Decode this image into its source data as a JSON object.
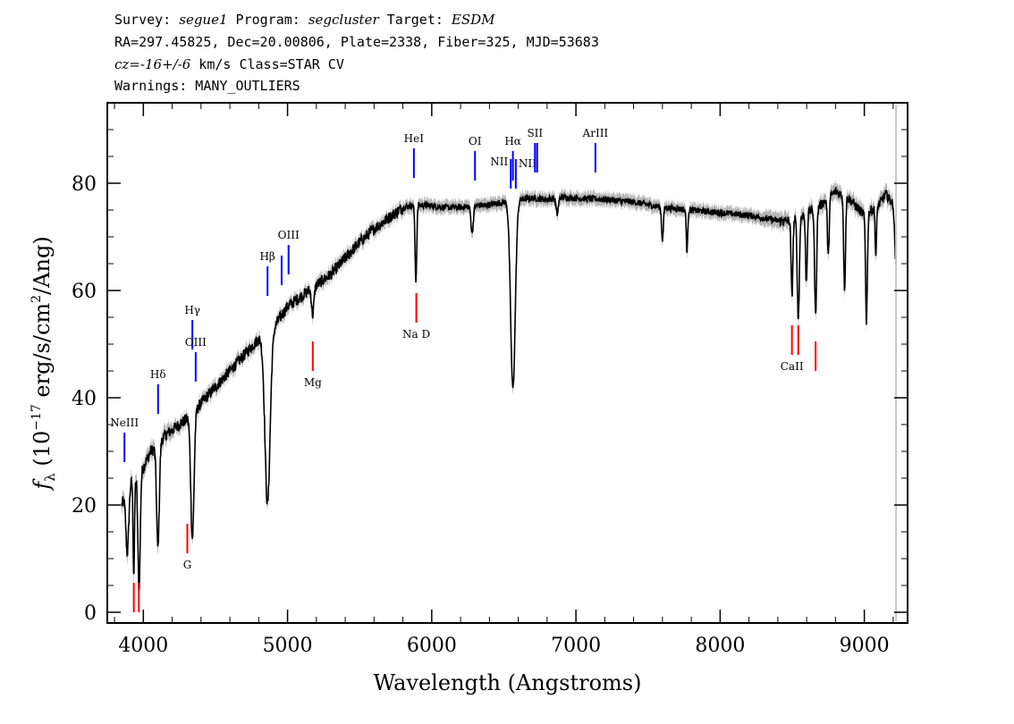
{
  "header": {
    "survey_label": "Survey:",
    "survey": "segue1",
    "program_label": "Program:",
    "program": "segcluster",
    "target_label": "Target:",
    "target": "ESDM",
    "line2": "RA=297.45825, Dec=20.00806, Plate=2338, Fiber=325, MJD=53683",
    "cz_prefix": "cz=",
    "cz_value": "-16+/-6",
    "cz_suffix": " km/s Class=STAR CV",
    "warnings": "Warnings: MANY_OUTLIERS"
  },
  "chart_data": {
    "type": "line",
    "xlabel": "Wavelength (Angstroms)",
    "ylabel_parts": [
      "f",
      "λ",
      " (10",
      "−17",
      " erg/s/cm",
      "2",
      "/Ang)"
    ],
    "xlim": [
      3750,
      9300
    ],
    "ylim": [
      -2,
      95
    ],
    "x_ticks": [
      4000,
      5000,
      6000,
      7000,
      8000,
      9000
    ],
    "x_tick_labels": [
      "4000",
      "5000",
      "6000",
      "7000",
      "8000",
      "9000"
    ],
    "y_ticks": [
      0,
      20,
      40,
      60,
      80
    ],
    "y_tick_labels": [
      "0",
      "20",
      "40",
      "60",
      "80"
    ],
    "grid": false,
    "legend": "none",
    "colors": {
      "spectrum": "#000000",
      "error_band": "#b4b4b4",
      "emission": "#0000ff",
      "absorption": "#ff0000",
      "sky_edge": "#c8c8c8"
    },
    "continuum": [
      [
        3850,
        20
      ],
      [
        3900,
        24
      ],
      [
        4000,
        27
      ],
      [
        4050,
        30
      ],
      [
        4100,
        31
      ],
      [
        4150,
        33
      ],
      [
        4200,
        34
      ],
      [
        4300,
        36
      ],
      [
        4350,
        37
      ],
      [
        4400,
        39
      ],
      [
        4500,
        42
      ],
      [
        4600,
        45
      ],
      [
        4700,
        48
      ],
      [
        4800,
        51
      ],
      [
        4850,
        52
      ],
      [
        4900,
        53
      ],
      [
        5000,
        57
      ],
      [
        5100,
        59
      ],
      [
        5200,
        61
      ],
      [
        5300,
        63
      ],
      [
        5400,
        66
      ],
      [
        5500,
        69
      ],
      [
        5600,
        71.5
      ],
      [
        5700,
        73.5
      ],
      [
        5800,
        75.5
      ],
      [
        5900,
        76
      ],
      [
        6000,
        75.8
      ],
      [
        6100,
        75.5
      ],
      [
        6200,
        75.5
      ],
      [
        6300,
        75.8
      ],
      [
        6400,
        76
      ],
      [
        6500,
        76.5
      ],
      [
        6600,
        77
      ],
      [
        6700,
        77.2
      ],
      [
        6800,
        77
      ],
      [
        6900,
        77.4
      ],
      [
        7000,
        77.2
      ],
      [
        7200,
        77
      ],
      [
        7400,
        76.5
      ],
      [
        7600,
        75.5
      ],
      [
        7800,
        75
      ],
      [
        8000,
        74.5
      ],
      [
        8200,
        74
      ],
      [
        8400,
        73
      ],
      [
        8500,
        73
      ],
      [
        8600,
        74.5
      ],
      [
        8700,
        76
      ],
      [
        8800,
        78.5
      ],
      [
        8900,
        77
      ],
      [
        9000,
        74
      ],
      [
        9100,
        76
      ],
      [
        9150,
        78
      ],
      [
        9200,
        76
      ],
      [
        9220,
        64
      ]
    ],
    "absorption_dips": [
      [
        3889,
        12,
        10
      ],
      [
        3934,
        18,
        5
      ],
      [
        3970,
        22,
        8
      ],
      [
        4101,
        19,
        9
      ],
      [
        4340,
        23,
        11
      ],
      [
        4861,
        32,
        18
      ],
      [
        5175,
        5,
        8
      ],
      [
        5890,
        14,
        6
      ],
      [
        6280,
        5,
        8
      ],
      [
        6563,
        35,
        16
      ],
      [
        6870,
        3,
        8
      ],
      [
        7600,
        6,
        6
      ],
      [
        7770,
        8,
        5
      ],
      [
        8498,
        14,
        6
      ],
      [
        8542,
        19,
        7
      ],
      [
        8598,
        13,
        6
      ],
      [
        8662,
        20,
        7
      ],
      [
        8750,
        11,
        6
      ],
      [
        8863,
        17,
        6
      ],
      [
        9015,
        20,
        6
      ],
      [
        9080,
        9,
        5
      ]
    ],
    "emission_lines": [
      {
        "label": "NeIII",
        "wavelength": 3869,
        "y": 28,
        "label_position": "above"
      },
      {
        "label": "Hδ",
        "wavelength": 4102,
        "y": 37,
        "label_position": "above"
      },
      {
        "label": "Hγ",
        "wavelength": 4340,
        "y": 49,
        "label_position": "above"
      },
      {
        "label": "OIII",
        "wavelength": 4363,
        "y": 43,
        "label_position": "above"
      },
      {
        "label": "Hβ",
        "wavelength": 4861,
        "y": 59,
        "label_position": "above"
      },
      {
        "label": "",
        "wavelength": 4959,
        "y": 61,
        "label_position": "none"
      },
      {
        "label": "OIII",
        "wavelength": 5007,
        "y": 63,
        "label_position": "above"
      },
      {
        "label": "HeI",
        "wavelength": 5876,
        "y": 81,
        "label_position": "above"
      },
      {
        "label": "OI",
        "wavelength": 6300,
        "y": 80.5,
        "label_position": "above"
      },
      {
        "label": "NII",
        "wavelength": 6548,
        "y": 79,
        "label_position": "above-left"
      },
      {
        "label": "Hα",
        "wavelength": 6563,
        "y": 80.5,
        "label_position": "above"
      },
      {
        "label": "NII",
        "wavelength": 6583,
        "y": 79,
        "label_position": "above-right"
      },
      {
        "label": "SII",
        "wavelength": 6716,
        "y": 82,
        "label_position": "above"
      },
      {
        "label": "",
        "wavelength": 6731,
        "y": 82,
        "label_position": "none"
      },
      {
        "label": "ArIII",
        "wavelength": 7135,
        "y": 82,
        "label_position": "above"
      }
    ],
    "absorption_lines": [
      {
        "label": "",
        "wavelength": 3934,
        "y": 0,
        "label_position": "none"
      },
      {
        "label": "",
        "wavelength": 3969,
        "y": 0,
        "label_position": "none"
      },
      {
        "label": "G",
        "wavelength": 4305,
        "y": 11,
        "label_position": "below"
      },
      {
        "label": "Mg",
        "wavelength": 5175,
        "y": 45,
        "label_position": "below"
      },
      {
        "label": "Na D",
        "wavelength": 5893,
        "y": 54,
        "label_position": "below"
      },
      {
        "label": "CaII",
        "wavelength": 8498,
        "y": 48,
        "label_position": "below"
      },
      {
        "label": "",
        "wavelength": 8542,
        "y": 48,
        "label_position": "none"
      },
      {
        "label": "",
        "wavelength": 8662,
        "y": 45,
        "label_position": "none"
      }
    ],
    "sky_edge_wavelength": 9220
  }
}
